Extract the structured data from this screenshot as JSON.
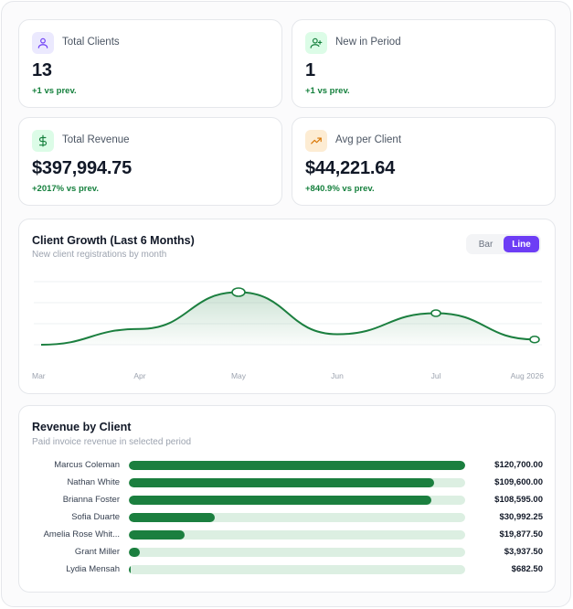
{
  "stats": [
    {
      "label": "Total Clients",
      "value": "13",
      "change": "+1 vs prev.",
      "icon": "user-icon",
      "icon_bg": "#ebe9fe",
      "icon_color": "#6d3df5"
    },
    {
      "label": "New in Period",
      "value": "1",
      "change": "+1 vs prev.",
      "icon": "user-plus-icon",
      "icon_bg": "#dcfce7",
      "icon_color": "#15803d"
    },
    {
      "label": "Total Revenue",
      "value": "$397,994.75",
      "change": "+2017% vs prev.",
      "icon": "dollar-icon",
      "icon_bg": "#dcfce7",
      "icon_color": "#15803d"
    },
    {
      "label": "Avg per Client",
      "value": "$44,221.64",
      "change": "+840.9% vs prev.",
      "icon": "trending-up-icon",
      "icon_bg": "#fdecd3",
      "icon_color": "#d97706"
    }
  ],
  "growth": {
    "title": "Client Growth (Last 6 Months)",
    "subtitle": "New client registrations by month",
    "toggle": {
      "bar": "Bar",
      "line": "Line",
      "active": "Line"
    }
  },
  "chart_data": {
    "type": "line",
    "categories": [
      "Mar",
      "Apr",
      "May",
      "Jun",
      "Jul",
      "Aug 2026"
    ],
    "values": [
      0,
      1.5,
      5,
      1,
      3,
      0.5
    ],
    "marked_points": [
      {
        "x": "May",
        "y": 5
      },
      {
        "x": "Jul",
        "y": 3
      },
      {
        "x": "Aug 2026",
        "y": 0.5
      }
    ],
    "ylim": [
      0,
      6
    ],
    "grid": true,
    "color": "#1b7f3f",
    "fill": "area-gradient"
  },
  "revenue": {
    "title": "Revenue by Client",
    "subtitle": "Paid invoice revenue in selected period",
    "max": 120700,
    "rows": [
      {
        "name": "Marcus Coleman",
        "value": 120700,
        "amount": "$120,700.00"
      },
      {
        "name": "Nathan White",
        "value": 109600,
        "amount": "$109,600.00"
      },
      {
        "name": "Brianna Foster",
        "value": 108595,
        "amount": "$108,595.00"
      },
      {
        "name": "Sofia Duarte",
        "value": 30992.25,
        "amount": "$30,992.25"
      },
      {
        "name": "Amelia Rose Whit...",
        "value": 19877.5,
        "amount": "$19,877.50"
      },
      {
        "name": "Grant Miller",
        "value": 3937.5,
        "amount": "$3,937.50"
      },
      {
        "name": "Lydia Mensah",
        "value": 682.5,
        "amount": "$682.50"
      }
    ]
  }
}
